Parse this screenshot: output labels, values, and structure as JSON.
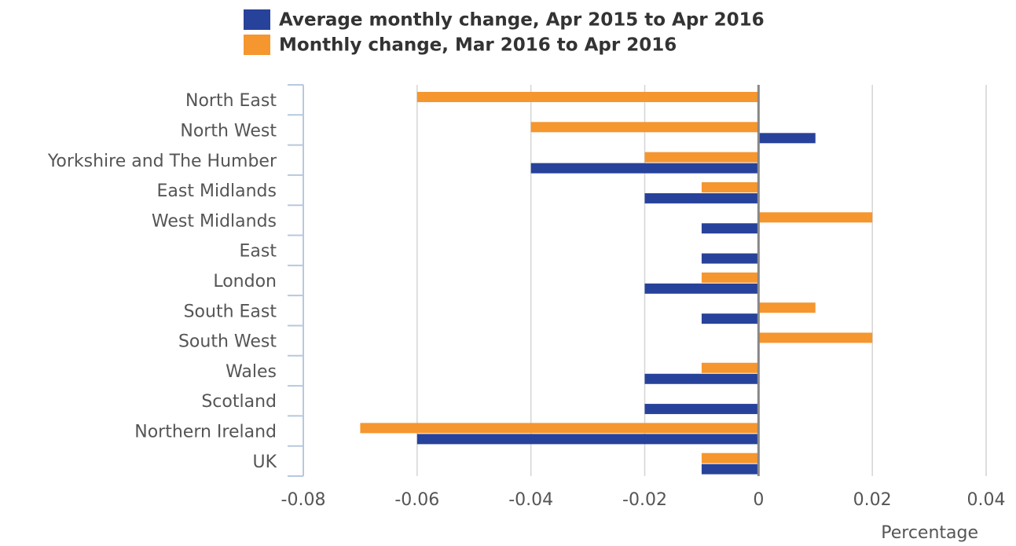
{
  "chart_data": {
    "type": "hbar",
    "categories": [
      "North East",
      "North West",
      "Yorkshire and The Humber",
      "East Midlands",
      "West Midlands",
      "East",
      "London",
      "South East",
      "South West",
      "Wales",
      "Scotland",
      "Northern Ireland",
      "UK"
    ],
    "series": [
      {
        "name": "Average monthly change, Apr 2015 to Apr 2016",
        "color": "#27429a",
        "values": [
          0,
          0.01,
          -0.04,
          -0.02,
          -0.01,
          -0.01,
          -0.02,
          -0.01,
          0,
          -0.02,
          -0.02,
          -0.06,
          -0.01
        ]
      },
      {
        "name": "Monthly change, Mar 2016 to Apr 2016",
        "color": "#f5962f",
        "values": [
          -0.06,
          -0.04,
          -0.02,
          -0.01,
          0.02,
          0,
          -0.01,
          0.01,
          0.02,
          -0.01,
          0,
          -0.07,
          -0.01
        ]
      }
    ],
    "x_label": "Percentage",
    "xlim": [
      -0.08,
      0.04
    ],
    "xticks": [
      -0.08,
      -0.06,
      -0.04,
      -0.02,
      0,
      0.02,
      0.04
    ],
    "grid": true
  }
}
